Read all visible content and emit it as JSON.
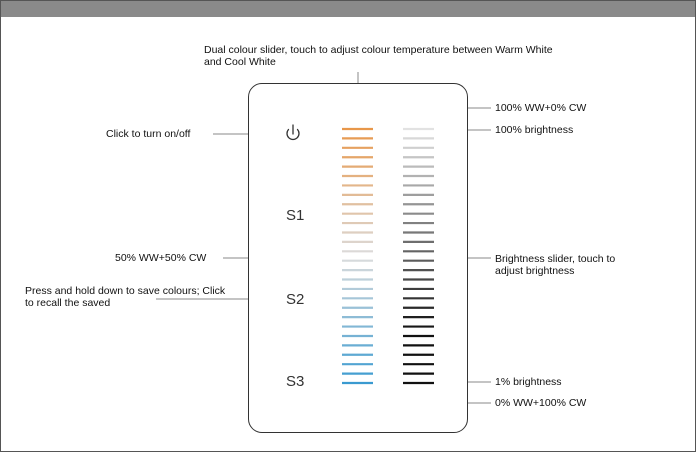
{
  "header": {
    "title": ""
  },
  "annotations": {
    "top_note": "Dual colour slider, touch to adjust colour temperature between Warm White and Cool White",
    "power_note": "Click to turn on/off",
    "mid_mix": "50% WW+50% CW",
    "scene_note": "Press and hold down to save colours; Click to recall the saved",
    "top_mix": "100% WW+0% CW",
    "max_brightness": "100% brightness",
    "brightness_note": "Brightness slider, touch to adjust brightness",
    "min_brightness": "1% brightness",
    "bottom_mix": "0% WW+100% CW"
  },
  "scene_keys": [
    "S1",
    "S2",
    "S3"
  ],
  "power_icon": "power-icon",
  "sliders": {
    "colour": {
      "segments": 28,
      "top_color": "#e8974a",
      "mid_color": "#dcdcdc",
      "bottom_color": "#3a9ad0"
    },
    "brightness": {
      "segments": 28,
      "top_color": "#e2e2e2",
      "bottom_color": "#111111"
    }
  }
}
